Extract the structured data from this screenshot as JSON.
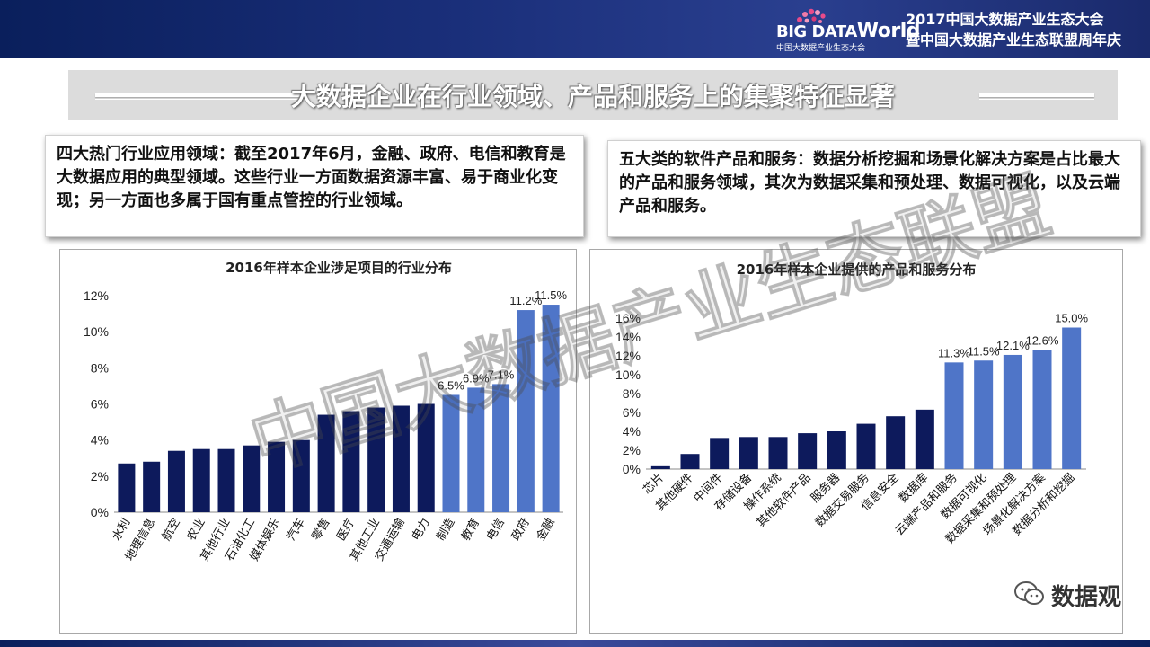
{
  "header": {
    "logo_text_left": "BIG DATA",
    "logo_text_right": "World",
    "logo_sub": "中国大数据产业生态大会",
    "event_line1": "2017中国大数据产业生态大会",
    "event_line2": "暨中国大数据产业生态联盟周年庆"
  },
  "section_title": "大数据企业在行业领域、产品和服务上的集聚特征显著",
  "left_box": {
    "text": "四大热门行业应用领域：截至2017年6月，金融、政府、电信和教育是大数据应用的典型领域。这些行业一方面数据资源丰富、易于商业化变现；另一方面也多属于国有重点管控的行业领域。"
  },
  "right_box": {
    "text": "五大类的软件产品和服务：数据分析挖掘和场景化解决方案是占比最大的产品和服务领域，其次为数据采集和预处理、数据可视化，以及云端产品和服务。"
  },
  "watermark": "中国大数据产业生态联盟",
  "footer_account": "数据观",
  "colors": {
    "dark_bar": "#0d1a5c",
    "light_bar": "#4f75c8",
    "header_bg": "#0a1f5c"
  },
  "chart_data": [
    {
      "type": "bar",
      "title": "2016年样本企业涉足项目的行业分布",
      "categories": [
        "水利",
        "地理信息",
        "航空",
        "农业",
        "其他行业",
        "石油化工",
        "媒体娱乐",
        "汽车",
        "零售",
        "医疗",
        "其他工业",
        "交通运输",
        "电力",
        "制造",
        "教育",
        "电信",
        "政府",
        "金融"
      ],
      "values": [
        2.7,
        2.8,
        3.4,
        3.5,
        3.5,
        3.7,
        3.9,
        4.0,
        5.4,
        5.6,
        5.8,
        5.9,
        6.0,
        6.5,
        6.9,
        7.1,
        11.2,
        11.5
      ],
      "labels": [
        "",
        "",
        "",
        "",
        "",
        "",
        "",
        "",
        "",
        "",
        "",
        "",
        "",
        "6.5%",
        "6.9%",
        "7.1%",
        "11.2%",
        "11.5%"
      ],
      "highlight_from": 13,
      "yticks": [
        "0%",
        "2%",
        "4%",
        "6%",
        "8%",
        "10%",
        "12%"
      ],
      "ylim": [
        0,
        12
      ],
      "xlabel": "",
      "ylabel": ""
    },
    {
      "type": "bar",
      "title": "2016年样本企业提供的产品和服务分布",
      "categories": [
        "芯片",
        "其他硬件",
        "中间件",
        "存储设备",
        "操作系统",
        "其他软件产品",
        "服务器",
        "数据交易服务",
        "信息安全",
        "数据库",
        "云端产品和服务",
        "数据可视化",
        "数据采集和预处理",
        "场景化解决方案",
        "数据分析和挖掘"
      ],
      "values": [
        0.3,
        1.6,
        3.3,
        3.4,
        3.4,
        3.8,
        4.0,
        4.8,
        5.6,
        6.3,
        11.3,
        11.5,
        12.1,
        12.6,
        15.0
      ],
      "labels": [
        "",
        "",
        "",
        "",
        "",
        "",
        "",
        "",
        "",
        "",
        "11.3%",
        "11.5%",
        "12.1%",
        "12.6%",
        "15.0%"
      ],
      "highlight_from": 10,
      "yticks": [
        "0%",
        "2%",
        "4%",
        "6%",
        "8%",
        "10%",
        "12%",
        "14%",
        "16%"
      ],
      "ylim": [
        0,
        16
      ],
      "xlabel": "",
      "ylabel": ""
    }
  ]
}
